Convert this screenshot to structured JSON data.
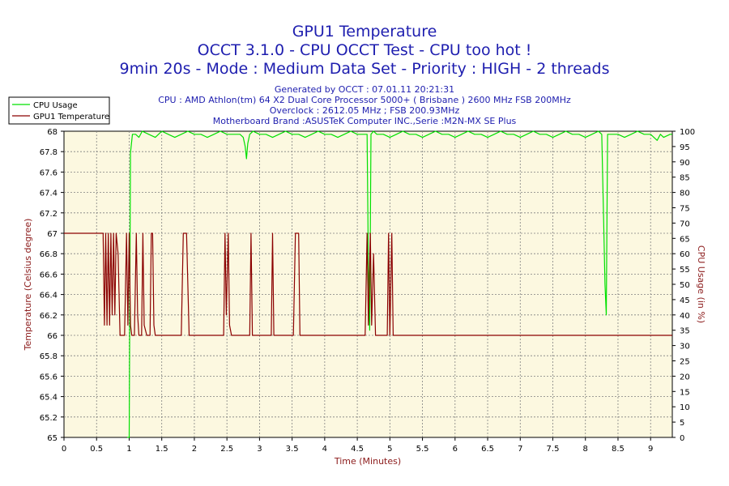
{
  "chart_data": {
    "type": "line",
    "title_lines": [
      "GPU1 Temperature",
      "OCCT 3.1.0 - CPU OCCT Test - CPU too hot !",
      "9min 20s - Mode : Medium Data Set - Priority : HIGH - 2 threads"
    ],
    "subtitle_lines": [
      "Generated by OCCT : 07.01.11 20:21:31",
      "CPU : AMD Athlon(tm) 64 X2 Dual Core Processor 5000+ ( Brisbane ) 2600 MHz FSB 200MHz",
      "Overclock : 2612.05 MHz ; FSB 200.93MHz",
      "Motherboard Brand :ASUSTeK Computer INC.,Serie :M2N-MX SE Plus"
    ],
    "xlabel": "Time (Minutes)",
    "ylabel_left": "Temperature (Celsius degree)",
    "ylabel_right": "CPU Usage (in %)",
    "xlim": [
      0,
      9.333
    ],
    "ylim_left": [
      65,
      68
    ],
    "ylim_right": [
      0,
      100
    ],
    "x_ticks": [
      "0",
      "0.5",
      "1",
      "1.5",
      "2",
      "2.5",
      "3",
      "3.5",
      "4",
      "4.5",
      "5",
      "5.5",
      "6",
      "6.5",
      "7",
      "7.5",
      "8",
      "8.5",
      "9"
    ],
    "y_ticks_left": [
      "65",
      "65.2",
      "65.4",
      "65.6",
      "65.8",
      "66",
      "66.2",
      "66.4",
      "66.6",
      "66.8",
      "67",
      "67.2",
      "67.4",
      "67.6",
      "67.8",
      "68"
    ],
    "y_ticks_right": [
      "0",
      "5",
      "10",
      "15",
      "20",
      "25",
      "30",
      "35",
      "40",
      "45",
      "50",
      "55",
      "60",
      "65",
      "70",
      "75",
      "80",
      "85",
      "90",
      "95",
      "100"
    ],
    "grid": true,
    "legend_position": "top-left",
    "series": [
      {
        "name": "CPU Usage",
        "axis": "right",
        "color": "#00e000",
        "points": [
          [
            0.97,
            0
          ],
          [
            1.0,
            0
          ],
          [
            1.02,
            93
          ],
          [
            1.05,
            99
          ],
          [
            1.1,
            99
          ],
          [
            1.15,
            98
          ],
          [
            1.2,
            100
          ],
          [
            1.3,
            99
          ],
          [
            1.4,
            98
          ],
          [
            1.45,
            99
          ],
          [
            1.5,
            100
          ],
          [
            1.6,
            99
          ],
          [
            1.7,
            98
          ],
          [
            1.8,
            99
          ],
          [
            1.9,
            100
          ],
          [
            2.0,
            99
          ],
          [
            2.1,
            99
          ],
          [
            2.2,
            98
          ],
          [
            2.3,
            99
          ],
          [
            2.4,
            100
          ],
          [
            2.5,
            99
          ],
          [
            2.6,
            99
          ],
          [
            2.7,
            99
          ],
          [
            2.75,
            98
          ],
          [
            2.78,
            95
          ],
          [
            2.8,
            91
          ],
          [
            2.82,
            96
          ],
          [
            2.85,
            99
          ],
          [
            2.9,
            100
          ],
          [
            3.0,
            99
          ],
          [
            3.1,
            99
          ],
          [
            3.2,
            98
          ],
          [
            3.3,
            99
          ],
          [
            3.4,
            100
          ],
          [
            3.5,
            99
          ],
          [
            3.6,
            99
          ],
          [
            3.7,
            98
          ],
          [
            3.8,
            99
          ],
          [
            3.9,
            100
          ],
          [
            4.0,
            99
          ],
          [
            4.1,
            99
          ],
          [
            4.2,
            98
          ],
          [
            4.3,
            99
          ],
          [
            4.4,
            100
          ],
          [
            4.5,
            99
          ],
          [
            4.6,
            99
          ],
          [
            4.65,
            99
          ],
          [
            4.67,
            55
          ],
          [
            4.69,
            35
          ],
          [
            4.71,
            99
          ],
          [
            4.75,
            100
          ],
          [
            4.8,
            99
          ],
          [
            4.9,
            99
          ],
          [
            5.0,
            98
          ],
          [
            5.1,
            99
          ],
          [
            5.2,
            100
          ],
          [
            5.3,
            99
          ],
          [
            5.4,
            99
          ],
          [
            5.5,
            98
          ],
          [
            5.6,
            99
          ],
          [
            5.7,
            100
          ],
          [
            5.8,
            99
          ],
          [
            5.9,
            99
          ],
          [
            6.0,
            98
          ],
          [
            6.1,
            99
          ],
          [
            6.2,
            100
          ],
          [
            6.3,
            99
          ],
          [
            6.4,
            99
          ],
          [
            6.5,
            98
          ],
          [
            6.6,
            99
          ],
          [
            6.7,
            100
          ],
          [
            6.8,
            99
          ],
          [
            6.9,
            99
          ],
          [
            7.0,
            98
          ],
          [
            7.1,
            99
          ],
          [
            7.2,
            100
          ],
          [
            7.3,
            99
          ],
          [
            7.4,
            99
          ],
          [
            7.5,
            98
          ],
          [
            7.6,
            99
          ],
          [
            7.7,
            100
          ],
          [
            7.8,
            99
          ],
          [
            7.9,
            99
          ],
          [
            8.0,
            98
          ],
          [
            8.1,
            99
          ],
          [
            8.2,
            100
          ],
          [
            8.25,
            99
          ],
          [
            8.28,
            70
          ],
          [
            8.3,
            50
          ],
          [
            8.32,
            40
          ],
          [
            8.34,
            99
          ],
          [
            8.4,
            99
          ],
          [
            8.5,
            99
          ],
          [
            8.6,
            98
          ],
          [
            8.7,
            99
          ],
          [
            8.8,
            100
          ],
          [
            8.9,
            99
          ],
          [
            9.0,
            99
          ],
          [
            9.1,
            97
          ],
          [
            9.15,
            99
          ],
          [
            9.2,
            98
          ],
          [
            9.3,
            99
          ],
          [
            9.33,
            99
          ]
        ]
      },
      {
        "name": "GPU1 Temperature",
        "axis": "left",
        "color": "#8b0000",
        "points": [
          [
            0.0,
            67
          ],
          [
            0.6,
            67
          ],
          [
            0.62,
            66.1
          ],
          [
            0.64,
            67
          ],
          [
            0.66,
            66.1
          ],
          [
            0.68,
            67
          ],
          [
            0.7,
            66.1
          ],
          [
            0.72,
            67
          ],
          [
            0.74,
            66.2
          ],
          [
            0.76,
            67
          ],
          [
            0.78,
            66.2
          ],
          [
            0.8,
            67
          ],
          [
            0.83,
            66.8
          ],
          [
            0.86,
            66
          ],
          [
            0.93,
            66
          ],
          [
            0.96,
            67
          ],
          [
            0.98,
            66.1
          ],
          [
            1.0,
            67
          ],
          [
            1.02,
            66.1
          ],
          [
            1.04,
            66
          ],
          [
            1.08,
            66
          ],
          [
            1.11,
            67
          ],
          [
            1.13,
            66.2
          ],
          [
            1.15,
            66
          ],
          [
            1.19,
            66
          ],
          [
            1.21,
            67
          ],
          [
            1.23,
            66.1
          ],
          [
            1.27,
            66
          ],
          [
            1.32,
            66
          ],
          [
            1.34,
            67
          ],
          [
            1.36,
            67
          ],
          [
            1.38,
            66.1
          ],
          [
            1.4,
            66
          ],
          [
            1.8,
            66
          ],
          [
            1.83,
            67
          ],
          [
            1.88,
            67
          ],
          [
            1.92,
            66
          ],
          [
            2.45,
            66
          ],
          [
            2.47,
            67
          ],
          [
            2.49,
            66.2
          ],
          [
            2.52,
            67
          ],
          [
            2.54,
            66.1
          ],
          [
            2.57,
            66
          ],
          [
            2.85,
            66
          ],
          [
            2.87,
            67
          ],
          [
            2.89,
            66
          ],
          [
            3.18,
            66
          ],
          [
            3.2,
            67
          ],
          [
            3.22,
            66
          ],
          [
            3.52,
            66
          ],
          [
            3.55,
            67
          ],
          [
            3.6,
            67
          ],
          [
            3.62,
            66
          ],
          [
            4.62,
            66
          ],
          [
            4.65,
            67
          ],
          [
            4.67,
            66.1
          ],
          [
            4.7,
            67
          ],
          [
            4.72,
            66.1
          ],
          [
            4.75,
            66.8
          ],
          [
            4.78,
            66
          ],
          [
            4.96,
            66
          ],
          [
            4.98,
            67
          ],
          [
            5.0,
            66
          ],
          [
            5.03,
            67
          ],
          [
            5.05,
            66
          ],
          [
            9.33,
            66
          ]
        ]
      }
    ]
  }
}
